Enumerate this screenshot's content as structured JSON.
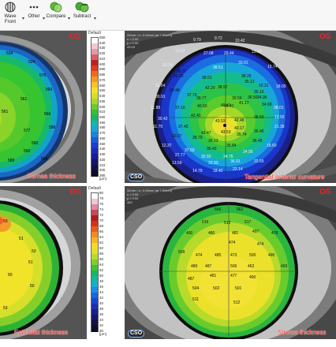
{
  "toolbar": {
    "buttons": [
      {
        "label": "Wave Front",
        "icon": "wavefront-icon"
      },
      {
        "label": "Other",
        "icon": "more-dots-icon"
      },
      {
        "label": "Compare",
        "icon": "compare-icon"
      },
      {
        "label": "Subtract",
        "icon": "subtract-icon"
      }
    ],
    "caret": "▾"
  },
  "colors": {
    "caption": "#ff2a2a",
    "eye_label": "#e8262a"
  },
  "panels": {
    "cornea": {
      "eye": "OS",
      "caption": "Cornea thickness",
      "values": [
        "534",
        "524",
        "575",
        "584",
        "561",
        "561",
        "566",
        "586",
        "577",
        "560",
        "550",
        "589",
        "584"
      ]
    },
    "tangential": {
      "eye": "OS",
      "caption": "Tangential anterior curvature",
      "header": [
        "32mm / z= 0.00mm (at 7.50mm)",
        "x = 0.00",
        "y = 0.00",
        "43.03"
      ],
      "values": [
        "9.79",
        "9.72",
        "10.42",
        "13.57",
        "27.08",
        "29.44",
        "13.93",
        "10.74",
        "30.37",
        "38.51",
        "33.01",
        "15.74",
        "38.25",
        "38.51",
        "35.13",
        "30.29",
        "42.20",
        "38.57",
        "12.21",
        "11.04",
        "30.48",
        "39.77",
        "39.59",
        "36.50",
        "18.05",
        "30.91",
        "37.79",
        "40.41",
        "35.16",
        "34.96",
        "11.88",
        "37.10",
        "40.50",
        "40.41",
        "41.17",
        "34.68",
        "38.01",
        "30.42",
        "42.40",
        "43.53",
        "42.48",
        "38.53",
        "13.56",
        "11.75",
        "37.42",
        "43.47",
        "43.53",
        "40.17",
        "36.45",
        "21.38",
        "30.07",
        "38.79",
        "36.13",
        "39.74",
        "12.37",
        "37.59",
        "36.43",
        "35.84",
        "36.45",
        "18.60",
        "27.77",
        "32.50",
        "34.75",
        "24.05",
        "13.59",
        "32.93",
        "36.91",
        "22.55",
        "14.79",
        "18.42",
        "22.14"
      ]
    },
    "epithelial": {
      "eye": "OS",
      "caption": "Epithelial thickness",
      "values": [
        "53",
        "51",
        "53",
        "51",
        "50",
        "50",
        "53"
      ]
    },
    "stroma": {
      "eye": "OS",
      "caption": "Stroma thickness",
      "header": [
        "32mm / z= 0.00mm (at 7.50mm)",
        "x = 0.00",
        "y = 0.00",
        "462"
      ],
      "values": [
        "556",
        "562",
        "516",
        "512",
        "517",
        "490",
        "480",
        "481",
        "497",
        "478",
        "474",
        "474",
        "509",
        "474",
        "485",
        "473",
        "500",
        "490",
        "489",
        "487",
        "506",
        "462",
        "493",
        "487",
        "481",
        "477",
        "490",
        "504",
        "502",
        "501",
        "511",
        "512"
      ]
    }
  },
  "scales": {
    "top": {
      "label": "Default",
      "values": [
        "650",
        "640",
        "630",
        "620",
        "610",
        "600",
        "590",
        "580",
        "570",
        "560",
        "550",
        "540",
        "530",
        "520",
        "510",
        "500",
        "490",
        "480",
        "470",
        "460",
        "450",
        "440",
        "430",
        "420",
        "410",
        "400",
        "390"
      ],
      "unit": "[µm]"
    },
    "bottom": {
      "label": "Default",
      "values": [
        "80",
        "78",
        "76",
        "74",
        "72",
        "70",
        "68",
        "66",
        "64",
        "62",
        "60",
        "58",
        "56",
        "54",
        "52",
        "50",
        "48",
        "46",
        "44",
        "42",
        "40",
        "38",
        "36",
        "34",
        "32",
        "30"
      ],
      "unit": "[µm]"
    }
  },
  "logo": "CSO"
}
